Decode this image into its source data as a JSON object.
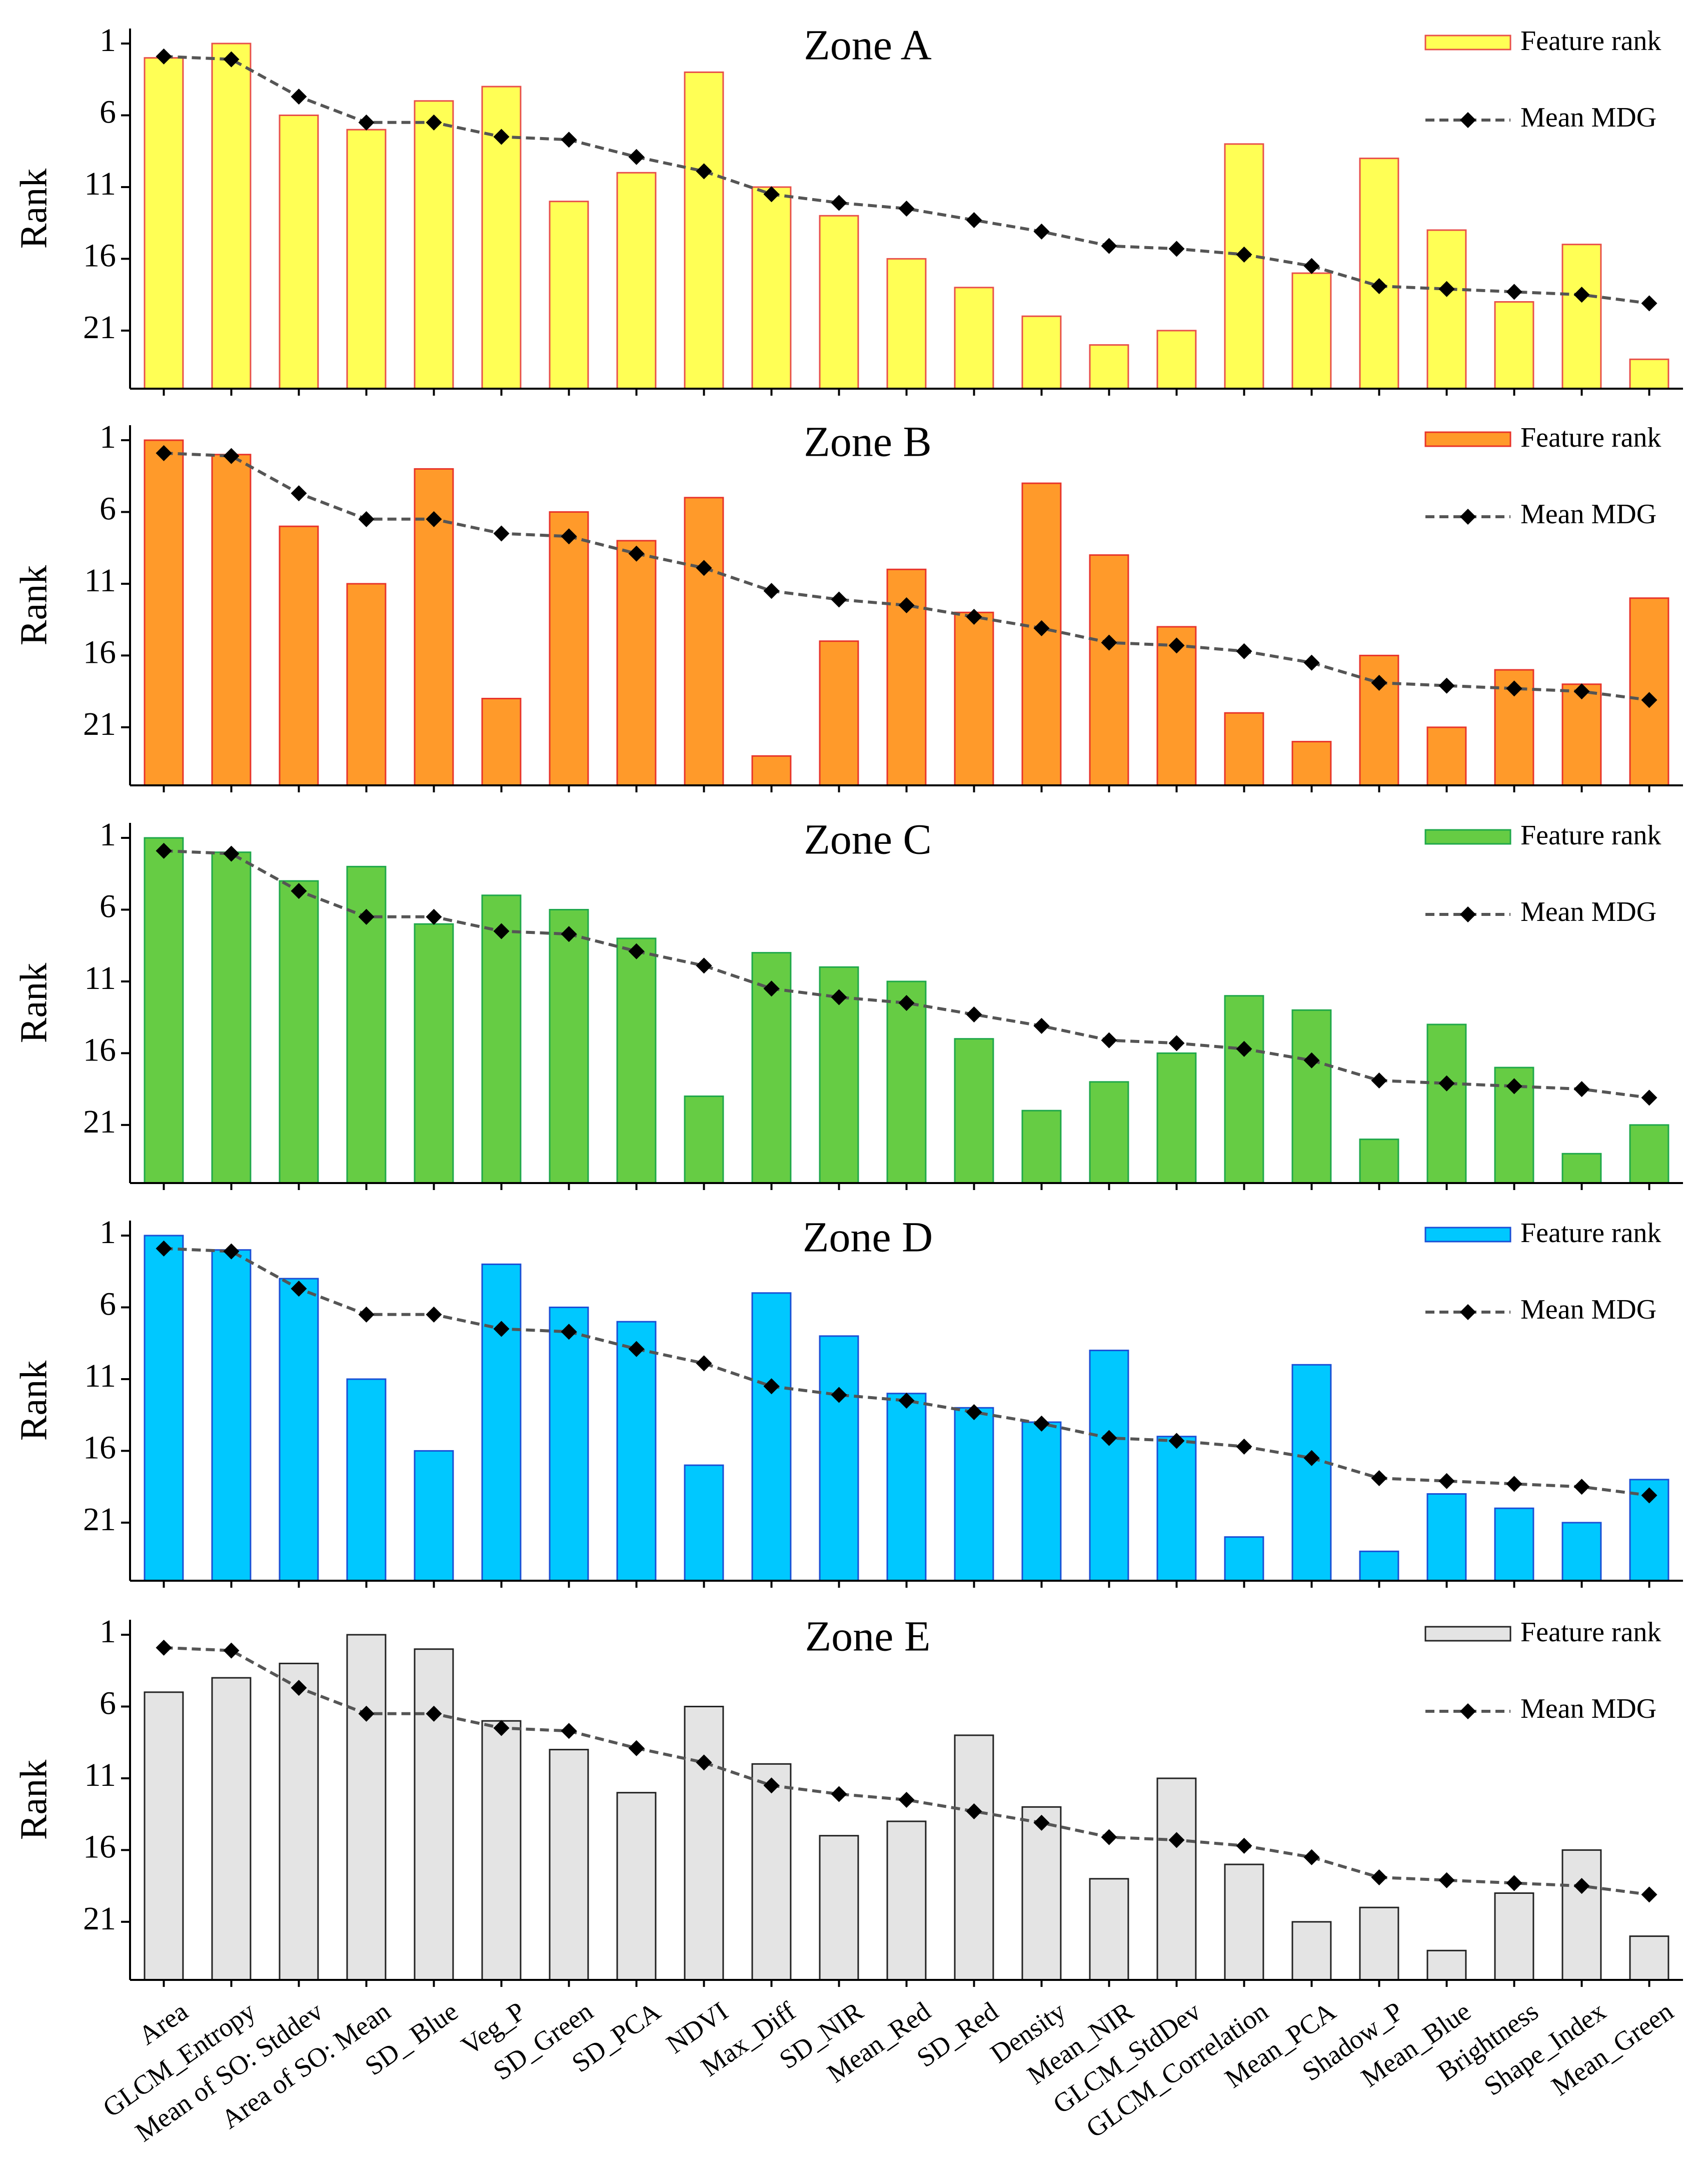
{
  "chart_data": {
    "type": "bar",
    "categories": [
      "Area",
      "GLCM_Entropy",
      "Mean of SO: Stddev",
      "Area of SO: Mean",
      "SD_ Blue",
      "Veg_P",
      "SD_Green",
      "SD_PCA",
      "NDVI",
      "Max_Diff",
      "SD_NIR",
      "Mean_Red",
      "SD_Red",
      "Density",
      "Mean_NIR",
      "GLCM_StdDev",
      "GLCM_Correlation",
      "Mean_PCA",
      "Shadow_P",
      "Mean_Blue",
      "Brightness",
      "Shape_Index",
      "Mean_Green"
    ],
    "ylabel": "Rank",
    "yticks": [
      1,
      6,
      11,
      16,
      21
    ],
    "ylim": [
      24,
      1
    ],
    "mean_mdg": [
      1.9,
      2.1,
      4.7,
      6.5,
      6.5,
      7.5,
      7.7,
      8.9,
      9.9,
      11.5,
      12.1,
      12.5,
      13.3,
      14.1,
      15.1,
      15.3,
      15.7,
      16.5,
      17.9,
      18.1,
      18.3,
      18.5,
      19.1
    ],
    "legend": [
      "Feature rank",
      "Mean MDG"
    ],
    "panels": [
      {
        "title": "Zone A",
        "color": "#FFFF55",
        "edge": "#E8504A",
        "values": [
          2,
          1,
          6,
          7,
          5,
          4,
          12,
          10,
          3,
          11,
          13,
          16,
          18,
          20,
          22,
          21,
          8,
          17,
          9,
          14,
          19,
          15,
          23
        ]
      },
      {
        "title": "Zone B",
        "color": "#FF9A2A",
        "edge": "#E8342A",
        "values": [
          1,
          2,
          7,
          11,
          3,
          19,
          6,
          8,
          5,
          23,
          15,
          10,
          13,
          4,
          9,
          14,
          20,
          22,
          16,
          21,
          17,
          18,
          12
        ]
      },
      {
        "title": "Zone C",
        "color": "#66CC44",
        "edge": "#1FA84A",
        "values": [
          1,
          2,
          4,
          3,
          7,
          5,
          6,
          8,
          19,
          9,
          10,
          11,
          15,
          20,
          18,
          16,
          12,
          13,
          22,
          14,
          17,
          23,
          21
        ]
      },
      {
        "title": "Zone D",
        "color": "#00C8FF",
        "edge": "#1A4FD6",
        "values": [
          1,
          2,
          4,
          11,
          16,
          3,
          6,
          7,
          17,
          5,
          8,
          12,
          13,
          14,
          9,
          15,
          22,
          10,
          23,
          19,
          20,
          21,
          18
        ]
      },
      {
        "title": "Zone E",
        "color": "#E4E4E4",
        "edge": "#222222",
        "values": [
          5,
          4,
          3,
          1,
          2,
          7,
          9,
          12,
          6,
          10,
          15,
          14,
          8,
          13,
          18,
          11,
          17,
          21,
          20,
          23,
          19,
          16,
          22
        ]
      }
    ]
  }
}
